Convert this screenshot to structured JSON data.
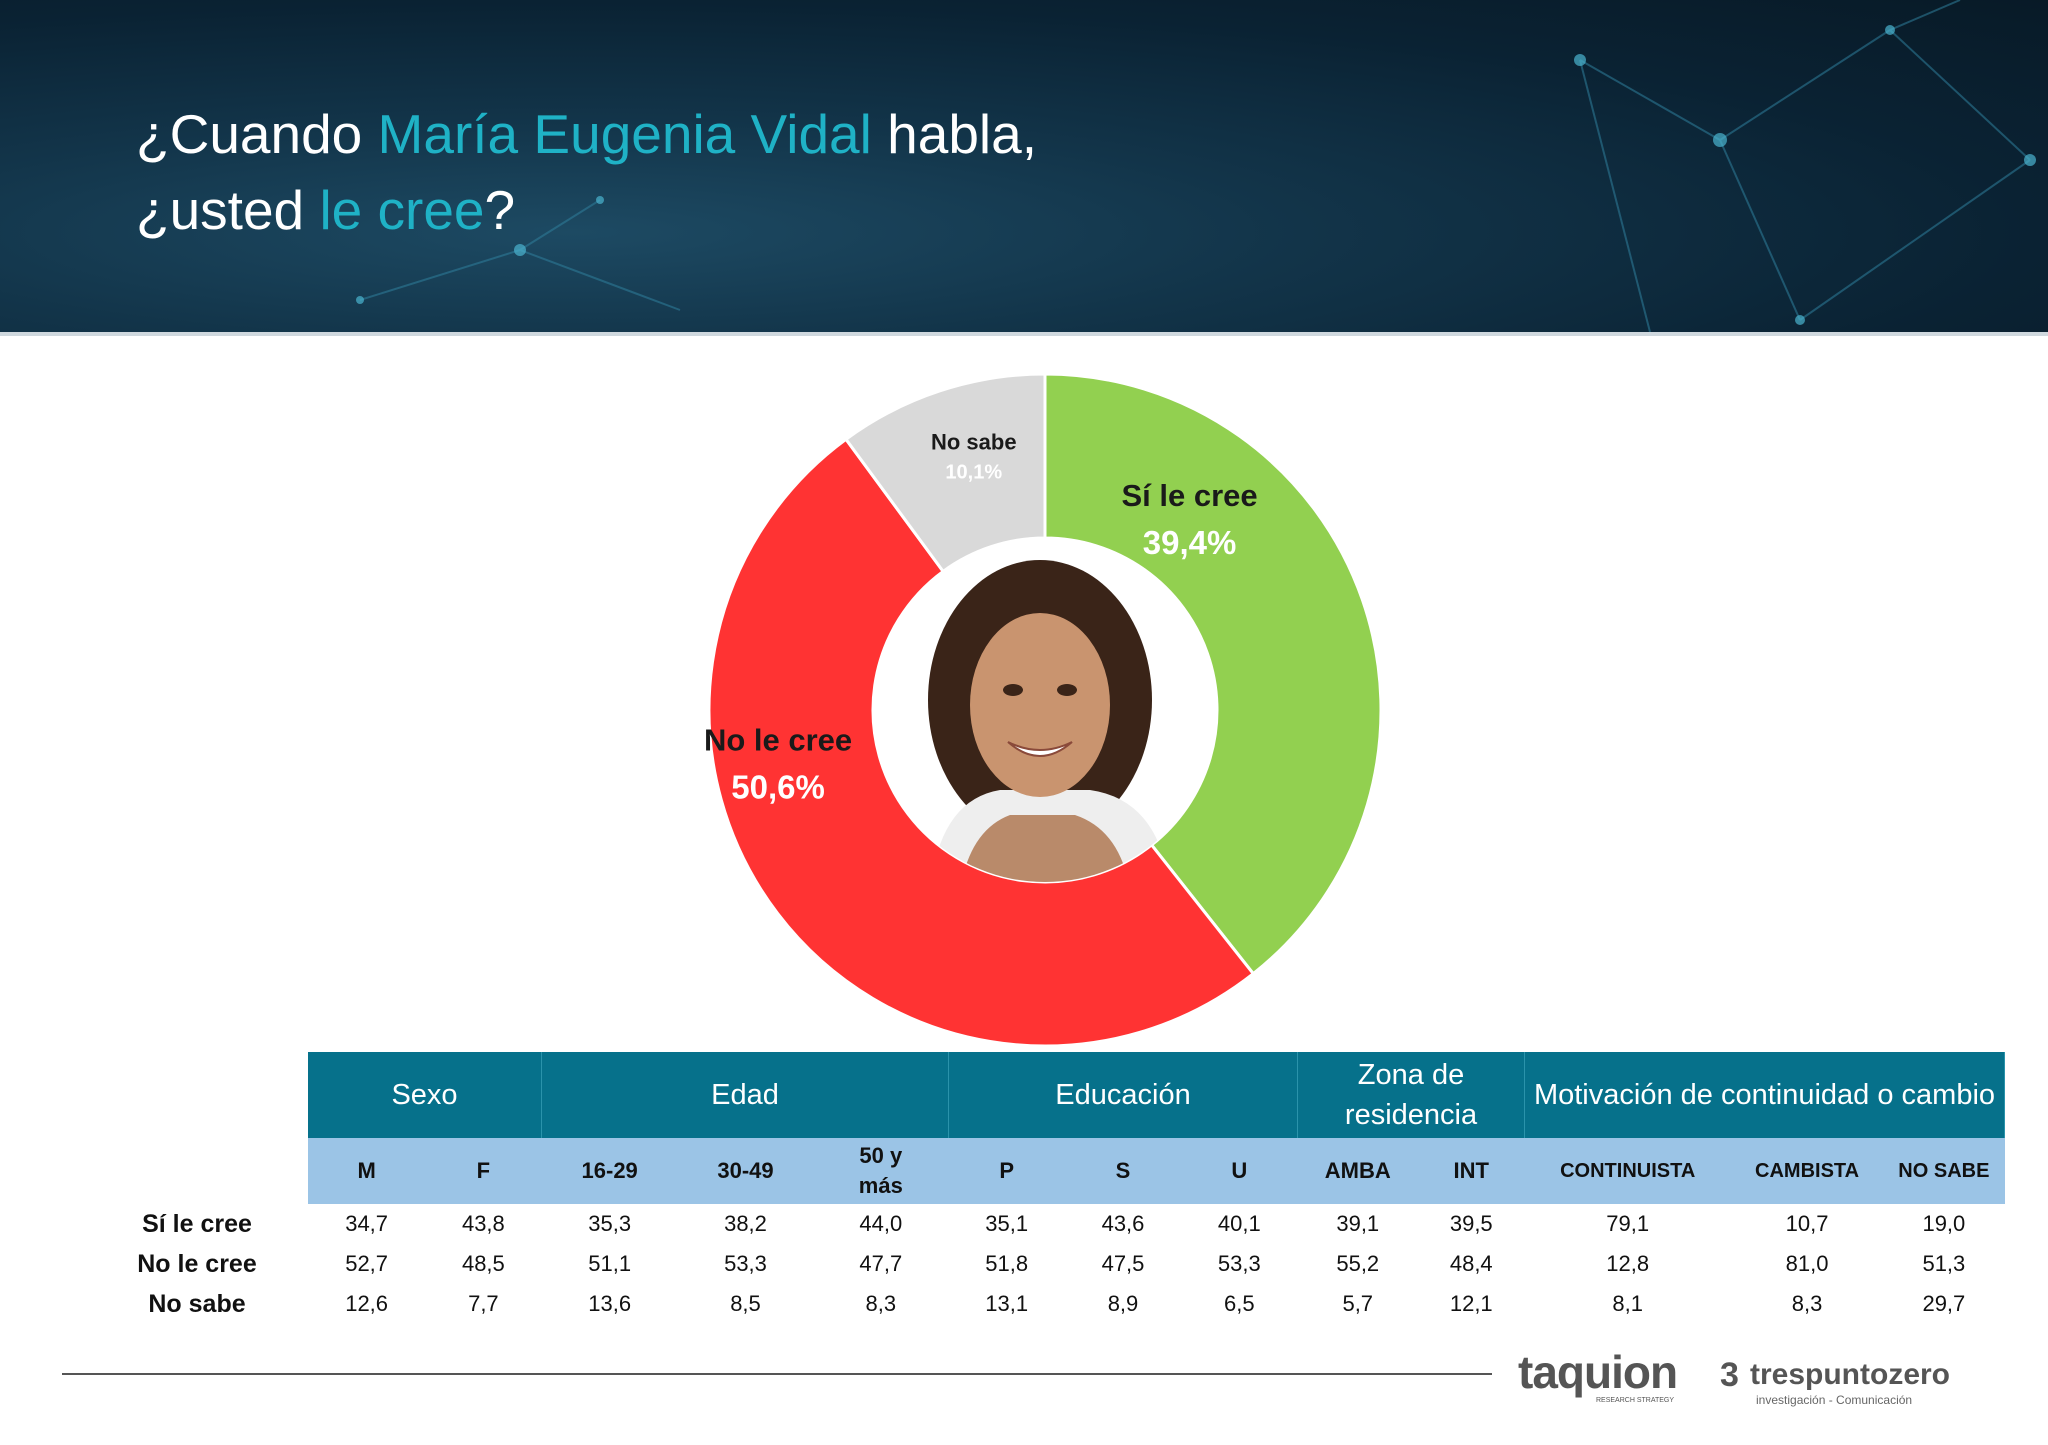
{
  "title": {
    "line1_a": "¿Cuando ",
    "line1_hl": "María Eugenia Vidal",
    "line1_b": " habla,",
    "line2_a": "¿usted ",
    "line2_hl": "le cree",
    "line2_b": "?"
  },
  "colors": {
    "accent": "#1fb2c6",
    "header_blue": "#06718b",
    "subheader_blue": "#9bc4e6",
    "si": "#92d050",
    "no": "#ff3333",
    "ns": "#d9d9d9"
  },
  "chart_data": {
    "type": "pie",
    "variant": "donut",
    "slices": [
      {
        "label": "Sí le cree",
        "value": 39.4,
        "display": "39,4%",
        "color": "#92d050"
      },
      {
        "label": "No le cree",
        "value": 50.6,
        "display": "50,6%",
        "color": "#ff3333"
      },
      {
        "label": "No sabe",
        "value": 10.1,
        "display": "10,1%",
        "color": "#d9d9d9"
      }
    ],
    "center_image": "portrait-photo"
  },
  "table": {
    "groups": [
      {
        "label": "Sexo",
        "span": 2
      },
      {
        "label": "Edad",
        "span": 3
      },
      {
        "label": "Educación",
        "span": 3
      },
      {
        "label": "Zona de residencia",
        "span": 2
      },
      {
        "label": "Motivación de continuidad o cambio",
        "span": 3
      }
    ],
    "columns": [
      "M",
      "F",
      "16-29",
      "30-49",
      "50 y más",
      "P",
      "S",
      "U",
      "AMBA",
      "INT",
      "CONTINUISTA",
      "CAMBISTA",
      "NO SABE"
    ],
    "rows": [
      {
        "label": "Sí le cree",
        "values": [
          "34,7",
          "43,8",
          "35,3",
          "38,2",
          "44,0",
          "35,1",
          "43,6",
          "40,1",
          "39,1",
          "39,5",
          "79,1",
          "10,7",
          "19,0"
        ]
      },
      {
        "label": "No le cree",
        "values": [
          "52,7",
          "48,5",
          "51,1",
          "53,3",
          "47,7",
          "51,8",
          "47,5",
          "53,3",
          "55,2",
          "48,4",
          "12,8",
          "81,0",
          "51,3"
        ]
      },
      {
        "label": "No sabe",
        "values": [
          "12,6",
          "7,7",
          "13,6",
          "8,5",
          "8,3",
          "13,1",
          "8,9",
          "6,5",
          "5,7",
          "12,1",
          "8,1",
          "8,3",
          "29,7"
        ]
      }
    ]
  },
  "logos": {
    "taquion": "taquion",
    "taquion_sub": "RESEARCH STRATEGY",
    "tres": "trespuntozero",
    "tres_sub": "investigación - Comunicación"
  }
}
